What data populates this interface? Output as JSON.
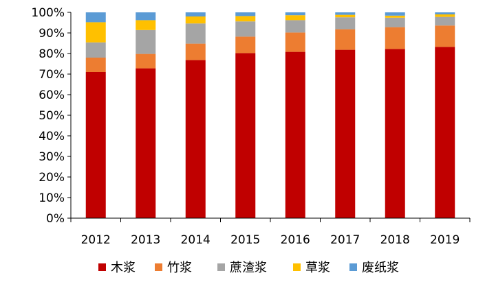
{
  "chart_data": {
    "type": "bar",
    "stacked": true,
    "percent": true,
    "categories": [
      "2012",
      "2013",
      "2014",
      "2015",
      "2016",
      "2017",
      "2018",
      "2019"
    ],
    "series": [
      {
        "name": "木浆",
        "color": "#C00000",
        "values": [
          71,
          72.8,
          76.8,
          80.2,
          80.8,
          81.8,
          82.2,
          83.2
        ]
      },
      {
        "name": "竹浆",
        "color": "#ED7D31",
        "values": [
          7,
          7,
          8,
          8,
          9.4,
          10,
          10.6,
          10.4
        ]
      },
      {
        "name": "蔗渣浆",
        "color": "#A5A5A5",
        "values": [
          7.4,
          11.6,
          9.8,
          7.4,
          6,
          5.8,
          4.6,
          4.2
        ]
      },
      {
        "name": "草浆",
        "color": "#FFC000",
        "values": [
          9.8,
          4.8,
          3.4,
          2.6,
          2.4,
          1.2,
          1,
          1.2
        ]
      },
      {
        "name": "废纸浆",
        "color": "#5B9BD5",
        "values": [
          4.8,
          3.8,
          2,
          1.8,
          1.4,
          1.2,
          1.6,
          1
        ]
      }
    ],
    "y_ticks": [
      "0%",
      "10%",
      "20%",
      "30%",
      "40%",
      "50%",
      "60%",
      "70%",
      "80%",
      "90%",
      "100%"
    ],
    "ylim": [
      0,
      100
    ],
    "legend_position": "bottom",
    "grid": false
  }
}
